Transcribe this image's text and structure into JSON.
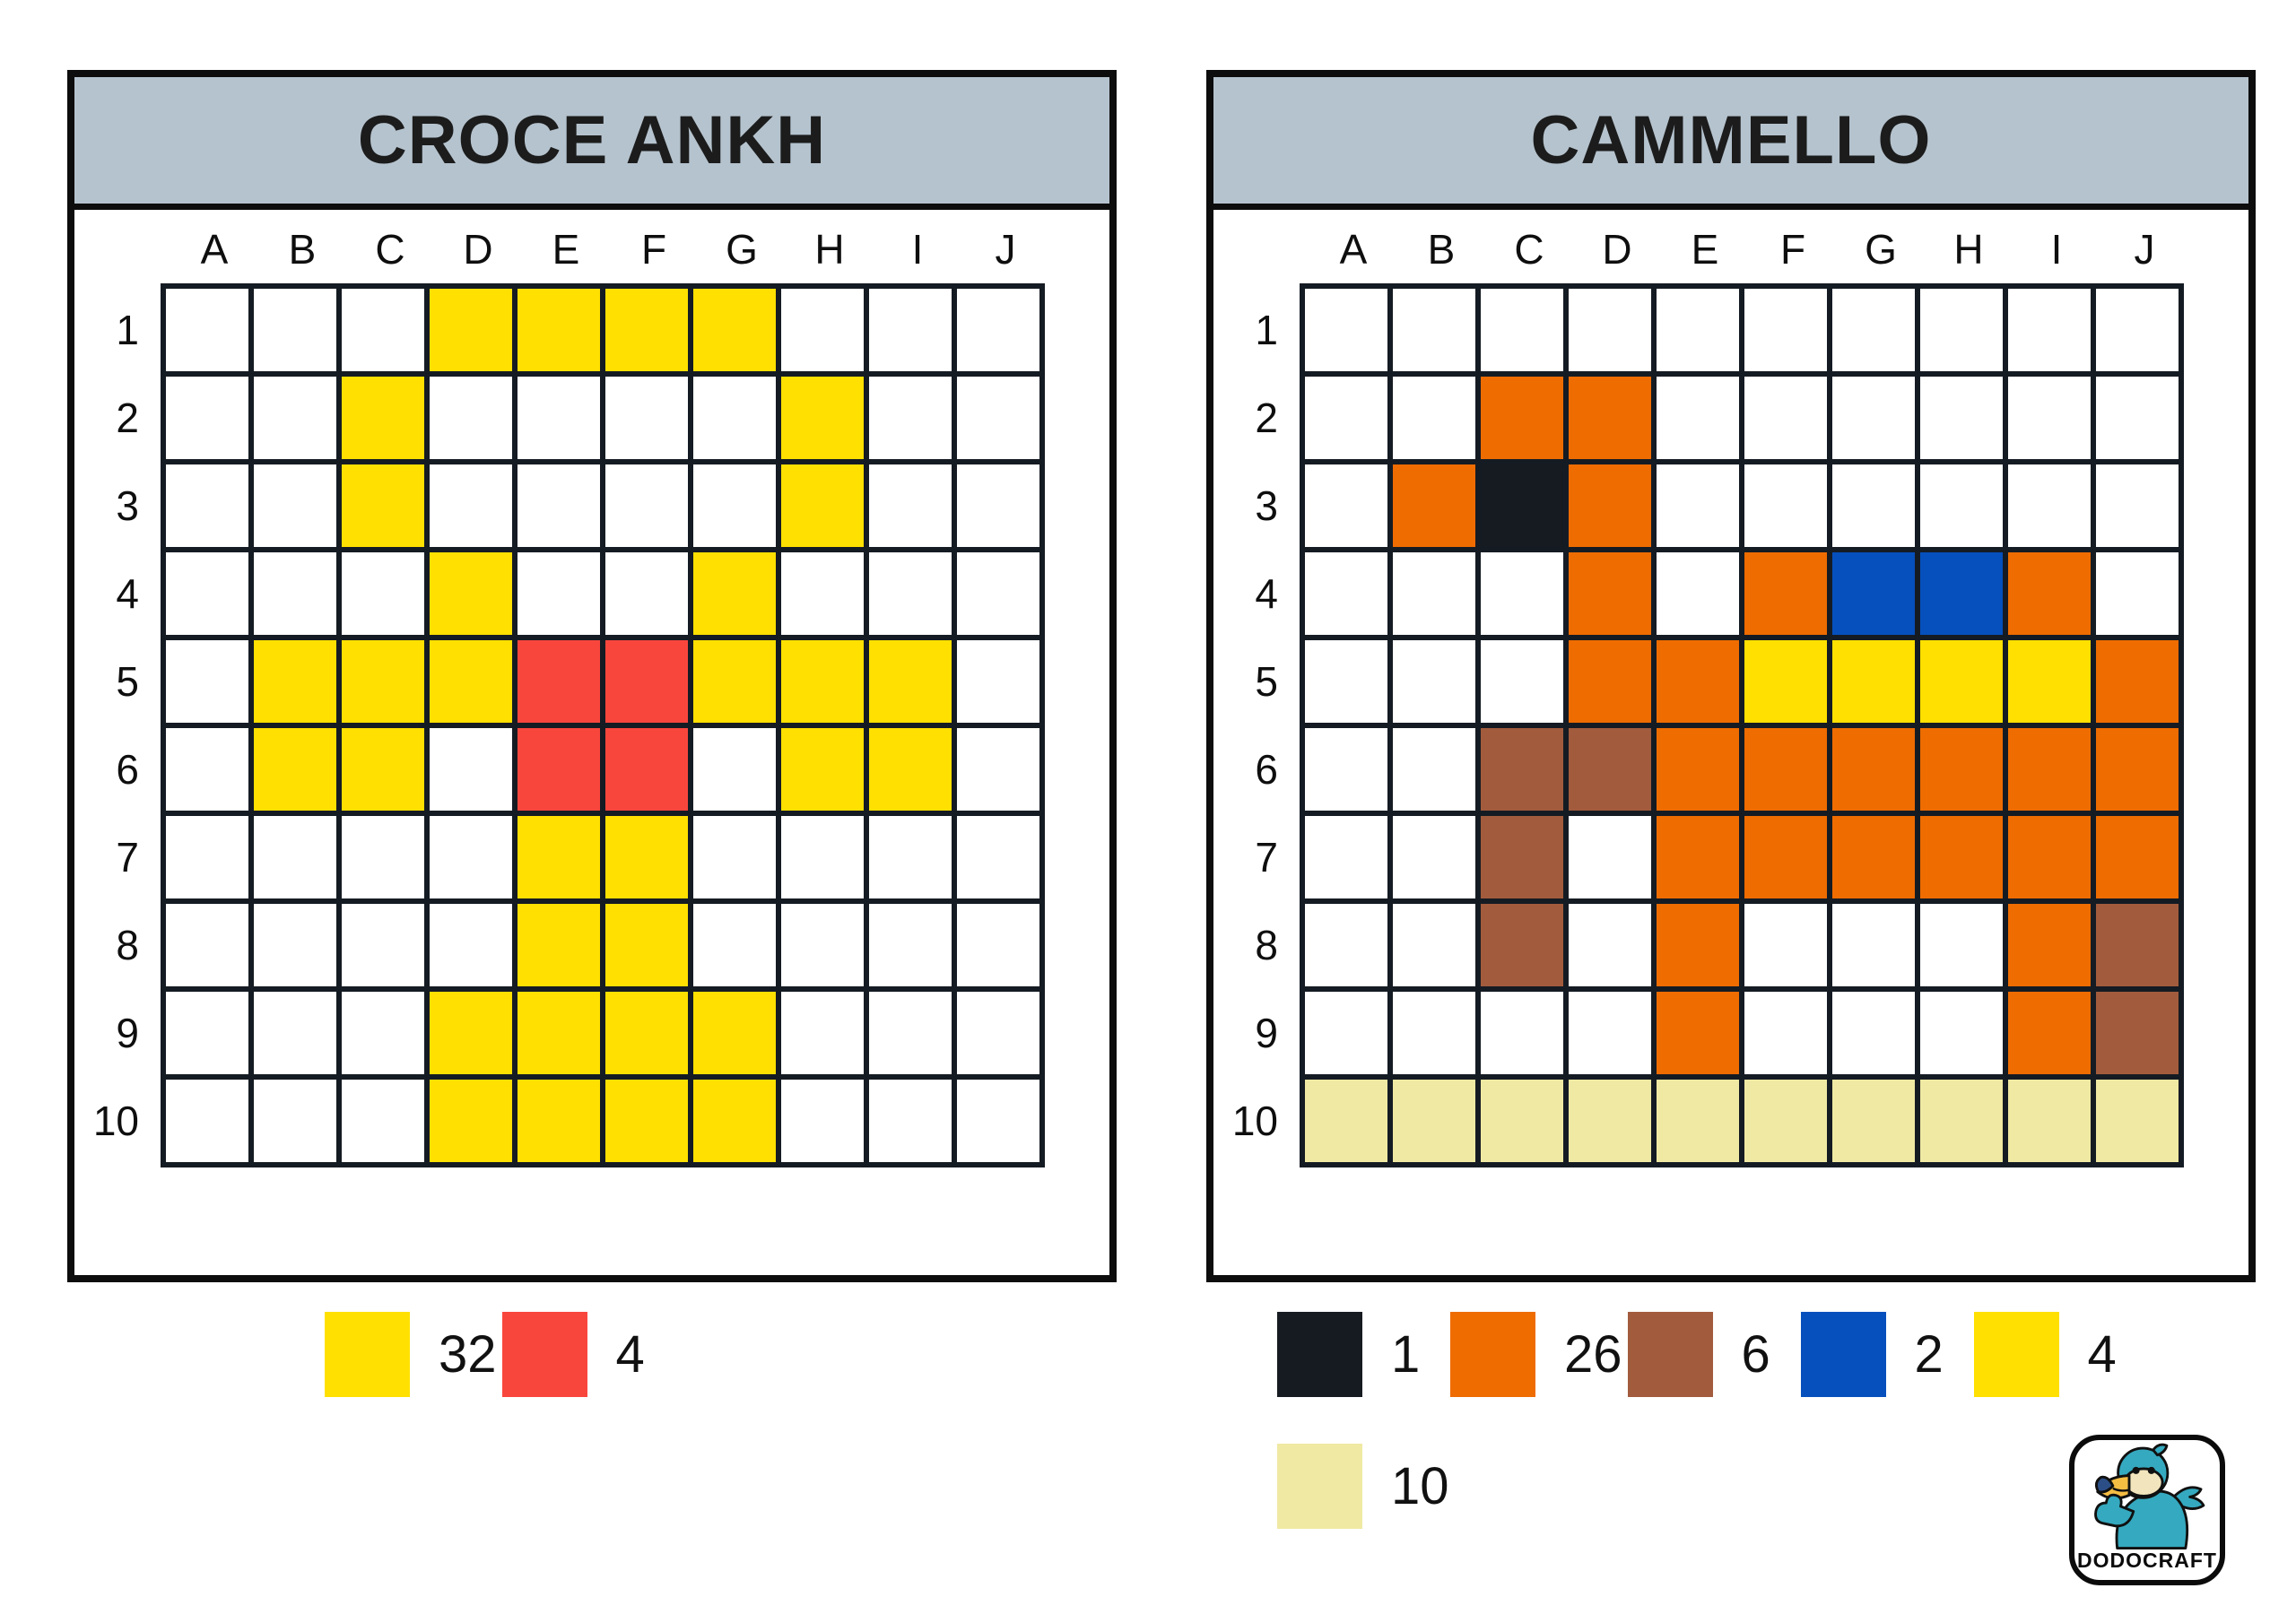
{
  "panels": [
    {
      "title": "CROCE ANKH",
      "columns": [
        "A",
        "B",
        "C",
        "D",
        "E",
        "F",
        "G",
        "H",
        "I",
        "J"
      ],
      "row_labels": [
        "1",
        "2",
        "3",
        "4",
        "5",
        "6",
        "7",
        "8",
        "9",
        "10"
      ],
      "palette": {
        ".": "#ffffff",
        "Y": "#ffe000",
        "R": "#f8463d"
      },
      "cells": [
        "...YYYY...",
        "..Y....Y..",
        "..Y....Y..",
        "...Y..Y...",
        ".YYYRRYYY.",
        ".YY.RR.YY.",
        "....YY....",
        "....YY....",
        "...YYYY...",
        "...YYYY..."
      ],
      "legend_rows": [
        [
          {
            "color": "#ffe000",
            "count": "32"
          },
          {
            "color": "#f8463d",
            "count": "4"
          }
        ]
      ]
    },
    {
      "title": "CAMMELLO",
      "columns": [
        "A",
        "B",
        "C",
        "D",
        "E",
        "F",
        "G",
        "H",
        "I",
        "J"
      ],
      "row_labels": [
        "1",
        "2",
        "3",
        "4",
        "5",
        "6",
        "7",
        "8",
        "9",
        "10"
      ],
      "palette": {
        ".": "#ffffff",
        "O": "#ee6c00",
        "K": "#161b22",
        "B": "#a25c3d",
        "U": "#0550bd",
        "Y": "#ffe000",
        "C": "#efe9a3"
      },
      "cells": [
        "..........",
        "..OO......",
        ".OKO......",
        "...O.OUUO.",
        "...OOYYYYO",
        "..BBOOOOOO",
        "..B.OOOOOO",
        "..B.O...OB",
        "....O...OB",
        "CCCCCCCCCC"
      ],
      "legend_rows": [
        [
          {
            "color": "#161b22",
            "count": "1"
          },
          {
            "color": "#ee6c00",
            "count": "26"
          },
          {
            "color": "#a25c3d",
            "count": "6"
          },
          {
            "color": "#0550bd",
            "count": "2"
          },
          {
            "color": "#ffe000",
            "count": "4"
          }
        ],
        [
          {
            "color": "#efe9a3",
            "count": "10"
          }
        ]
      ]
    }
  ],
  "logo": {
    "brand": "DODOCRAFT"
  },
  "colors": {
    "titlebar": "#b5c3ce",
    "grid_line": "#151b23",
    "panel_border": "#0d0d0d"
  }
}
